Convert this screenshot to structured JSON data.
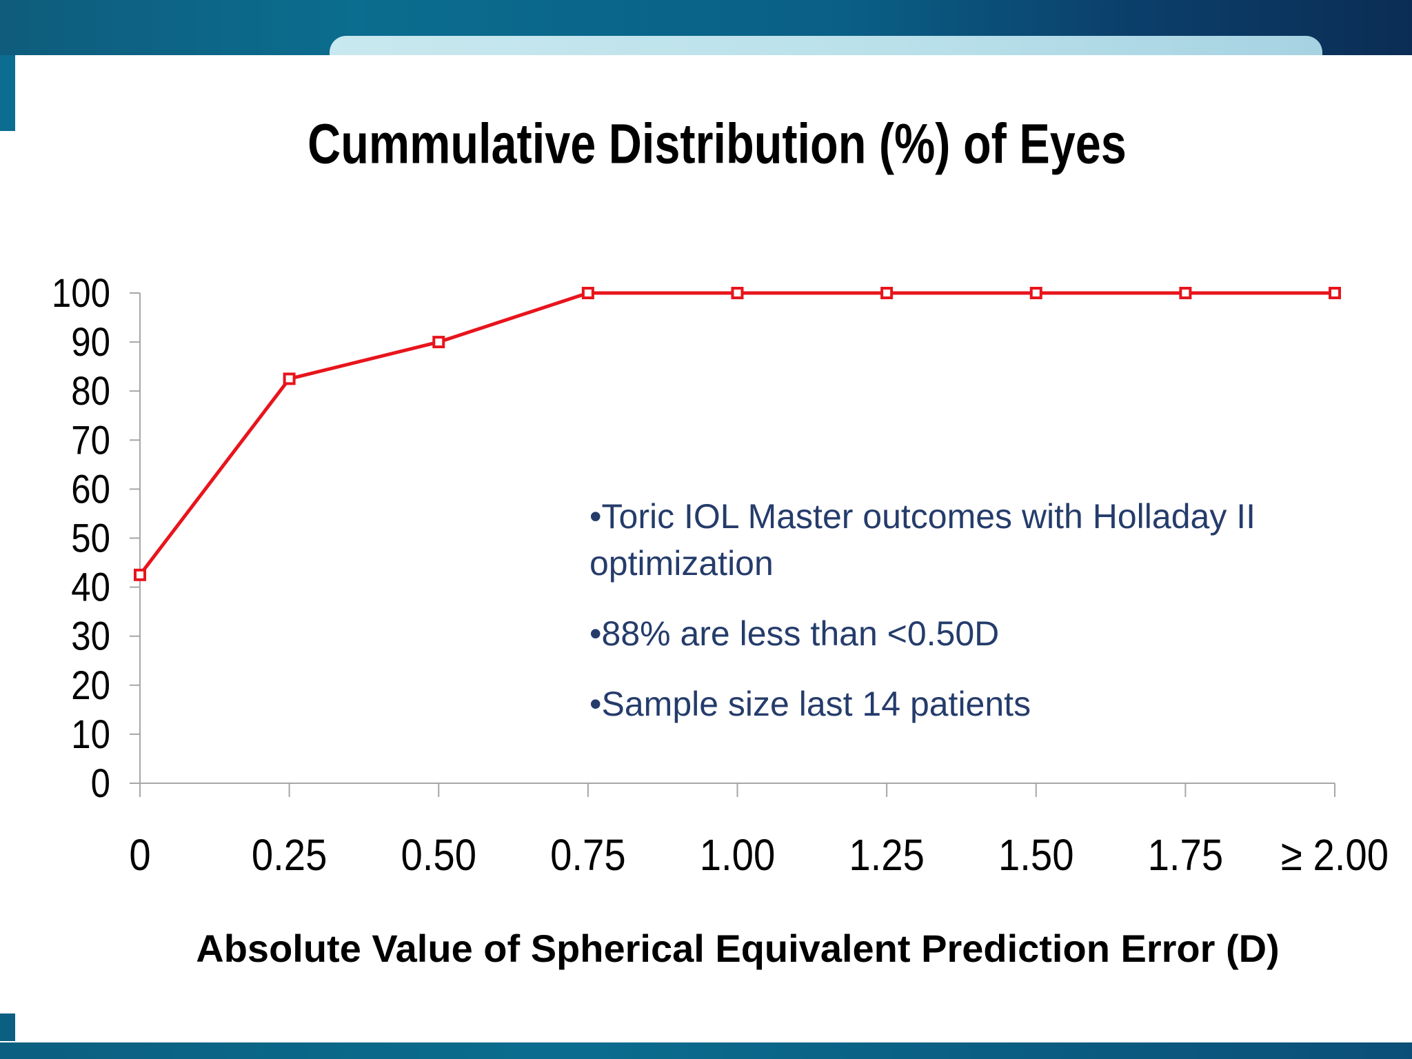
{
  "chart_data": {
    "type": "line",
    "title": "Cummulative Distribution (%) of Eyes",
    "xlabel": "Absolute Value of Spherical Equivalent Prediction Error (D)",
    "ylabel": "",
    "categories": [
      "0",
      "0.25",
      "0.50",
      "0.75",
      "1.00",
      "1.25",
      "1.50",
      "1.75",
      "≥ 2.00"
    ],
    "yticks": [
      "0",
      "10",
      "20",
      "30",
      "40",
      "50",
      "60",
      "70",
      "80",
      "90",
      "100"
    ],
    "ylim": [
      0,
      100
    ],
    "grid": false,
    "legend": "none",
    "series": [
      {
        "values": [
          42.5,
          82.5,
          90,
          100,
          100,
          100,
          100,
          100,
          100
        ],
        "color": "#e8141c",
        "marker": "square"
      }
    ]
  },
  "notes": [
    "•Toric IOL Master outcomes with Holladay II optimization",
    "•88% are less than <0.50D",
    "•Sample size last 14 patients"
  ],
  "colors": {
    "line": "#e8141c",
    "annotation": "#253c6b",
    "band": "#0b6d8f"
  }
}
